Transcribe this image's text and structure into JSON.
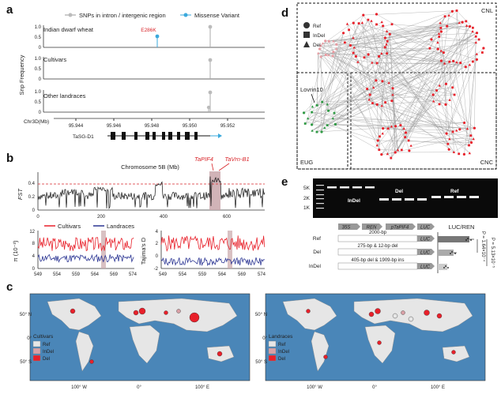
{
  "panels": {
    "a": {
      "letter": "a",
      "legend": {
        "intron": "SNPs in intron / intergenic region",
        "missense": "Missense Variant"
      },
      "ylabel": "Snp Frequency",
      "tracks": [
        {
          "name": "Indian dwarf wheat",
          "yticks": [
            "1.0",
            "0.5",
            "0"
          ]
        },
        {
          "name": "Cultivars",
          "yticks": [
            "1.0",
            "0.5",
            "0"
          ]
        },
        {
          "name": "Other landraces",
          "yticks": [
            "1.0",
            "0.5",
            "0"
          ]
        }
      ],
      "mutation_label": "E286K",
      "xaxis_label": "Chr3D(Mb)",
      "xticks": [
        "95.944",
        "95.946",
        "95.948",
        "95.950",
        "95.952"
      ],
      "gene_label": "TaSG-D1"
    },
    "b": {
      "letter": "b",
      "chrom_title": "Chromosome 5B (Mb)",
      "ylabel_fst": "FST",
      "fst_yticks": [
        "0.4",
        "0.2",
        "0"
      ],
      "fst_xticks": [
        "0",
        "200",
        "400",
        "600"
      ],
      "gene1": "TaPIF4",
      "gene2": "TaVrn-B1",
      "legend_cultivars": "Cultivars",
      "legend_landraces": "Landraces",
      "pi_ylabel": "π (10⁻³)",
      "pi_yticks": [
        "12",
        "8",
        "4",
        "0"
      ],
      "taj_ylabel": "Tajima's D",
      "taj_yticks": [
        "4",
        "2",
        "0",
        "-2"
      ],
      "zoom_xticks": [
        "549",
        "554",
        "559",
        "564",
        "569",
        "574"
      ]
    },
    "c": {
      "letter": "c",
      "left_title": "Cultivars",
      "right_title": "Landraces",
      "legend": [
        "Ref",
        "InDel",
        "Del"
      ],
      "lat_ticks": [
        "50° N",
        "0°",
        "50° S"
      ],
      "lon_ticks": [
        "100° W",
        "0°",
        "100° E"
      ]
    },
    "d": {
      "letter": "d",
      "legend": [
        "Ref",
        "InDel",
        "Del"
      ],
      "cnl": "CNL",
      "cnc": "CNC",
      "eug": "EUG",
      "lovrin": "Lovrin10"
    },
    "e": {
      "letter": "e",
      "ladder": [
        "5K",
        "2K",
        "1K"
      ],
      "gel_indel": "InDel",
      "gel_del": "Del",
      "gel_ref": "Ref",
      "construct": [
        "35S",
        "REN",
        "pTaPIF4",
        "LUC"
      ],
      "rows": [
        {
          "name": "Ref",
          "desc": "2000-bp"
        },
        {
          "name": "Del",
          "desc": "275-bp & 12-bp del"
        },
        {
          "name": "InDel",
          "desc": "405-bp del & 1909-bp ins"
        }
      ],
      "luc_title": "LUC/REN",
      "pval1": "P = 5.13×10⁻⁵",
      "pval2": "P = 1.64×10⁻⁴"
    }
  },
  "colors": {
    "cultivars": "#e8202a",
    "landraces": "#2b3593",
    "missense": "#3aa9dc",
    "ocean": "#4a86b8",
    "land": "#e6e6e6",
    "fst_highlight": "#c9a6aa",
    "gene_red": "#d9262b",
    "eug_green": "#2f9a44"
  }
}
